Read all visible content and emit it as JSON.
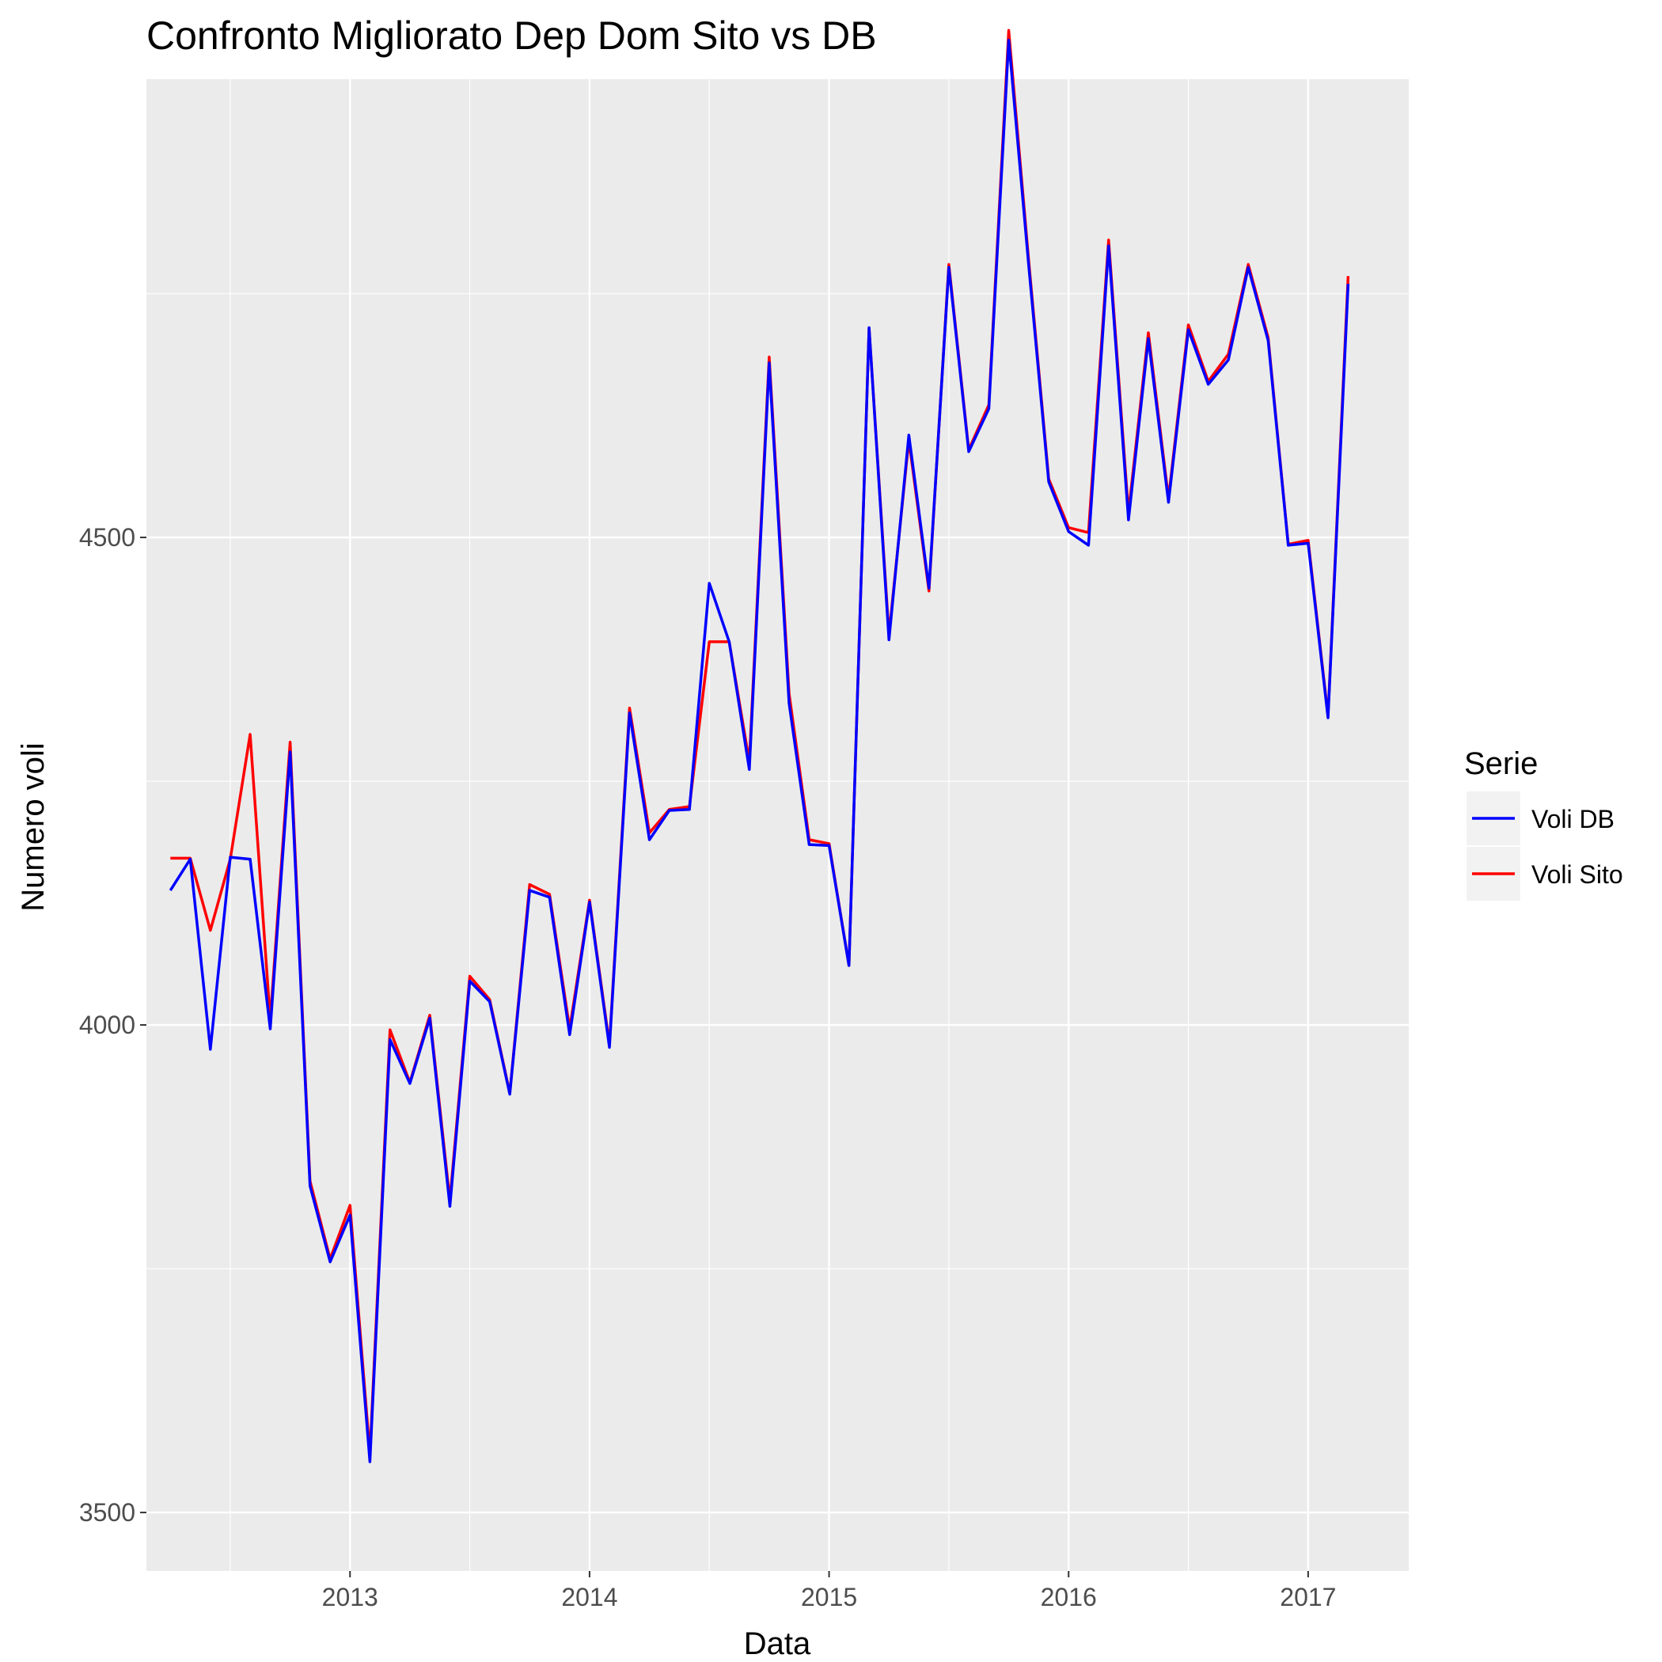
{
  "chart_data": {
    "type": "line",
    "title": "Confronto Migliorato Dep Dom Sito vs DB",
    "xlabel": "Data",
    "ylabel": "Numero voli",
    "xlim": [
      2012.15,
      2017.42
    ],
    "ylim": [
      3440,
      4970
    ],
    "x_ticks": [
      2013,
      2014,
      2015,
      2016,
      2017
    ],
    "x_tick_labels": [
      "2013",
      "2014",
      "2015",
      "2016",
      "2017"
    ],
    "y_ticks": [
      3500,
      4000,
      4500
    ],
    "y_tick_labels": [
      "3500",
      "4000",
      "4500"
    ],
    "grid": true,
    "legend": {
      "title": "Serie",
      "position": "right"
    },
    "x_dates": [
      "2012-04",
      "2012-05",
      "2012-06",
      "2012-07",
      "2012-08",
      "2012-09",
      "2012-10",
      "2012-11",
      "2012-12",
      "2013-01",
      "2013-02",
      "2013-03",
      "2013-04",
      "2013-05",
      "2013-06",
      "2013-07",
      "2013-08",
      "2013-09",
      "2013-10",
      "2013-11",
      "2013-12",
      "2014-01",
      "2014-02",
      "2014-03",
      "2014-04",
      "2014-05",
      "2014-06",
      "2014-07",
      "2014-08",
      "2014-09",
      "2014-10",
      "2014-11",
      "2014-12",
      "2015-01",
      "2015-02",
      "2015-03",
      "2015-04",
      "2015-05",
      "2015-06",
      "2015-07",
      "2015-08",
      "2015-09",
      "2015-10",
      "2015-11",
      "2015-12",
      "2016-01",
      "2016-02",
      "2016-03",
      "2016-04",
      "2016-05",
      "2016-06",
      "2016-07",
      "2016-08",
      "2016-09",
      "2016-10",
      "2016-11",
      "2016-12",
      "2017-01",
      "2017-02",
      "2017-03"
    ],
    "x": [
      2012.25,
      2012.333,
      2012.417,
      2012.5,
      2012.583,
      2012.667,
      2012.75,
      2012.833,
      2012.917,
      2013.0,
      2013.083,
      2013.167,
      2013.25,
      2013.333,
      2013.417,
      2013.5,
      2013.583,
      2013.667,
      2013.75,
      2013.833,
      2013.917,
      2014.0,
      2014.083,
      2014.167,
      2014.25,
      2014.333,
      2014.417,
      2014.5,
      2014.583,
      2014.667,
      2014.75,
      2014.833,
      2014.917,
      2015.0,
      2015.083,
      2015.167,
      2015.25,
      2015.333,
      2015.417,
      2015.5,
      2015.583,
      2015.667,
      2015.75,
      2015.833,
      2015.917,
      2016.0,
      2016.083,
      2016.167,
      2016.25,
      2016.333,
      2016.417,
      2016.5,
      2016.583,
      2016.667,
      2016.75,
      2016.833,
      2016.917,
      2017.0,
      2017.083,
      2017.167
    ],
    "series": [
      {
        "name": "Voli DB",
        "color": "#0000ff",
        "values": [
          4138,
          4170,
          3975,
          4172,
          4170,
          3996,
          4280,
          3835,
          3757,
          3805,
          3552,
          3985,
          3940,
          4007,
          3814,
          4045,
          4024,
          3929,
          4138,
          4131,
          3990,
          4126,
          3977,
          4320,
          4190,
          4220,
          4221,
          4453,
          4393,
          4262,
          4679,
          4330,
          4185,
          4184,
          4061,
          4715,
          4395,
          4605,
          4448,
          4777,
          4588,
          4632,
          5010,
          4780,
          4557,
          4506,
          4492,
          4799,
          4518,
          4704,
          4536,
          4713,
          4657,
          4682,
          4777,
          4702,
          4492,
          4494,
          4315,
          4760
        ],
        "draw_order": 2
      },
      {
        "name": "Voli Sito",
        "color": "#ff0000",
        "values": [
          4171,
          4171,
          4097,
          4170,
          4298,
          4005,
          4290,
          3840,
          3760,
          3815,
          3560,
          3995,
          3941,
          4010,
          3820,
          4050,
          4026,
          3930,
          4144,
          4134,
          3996,
          4128,
          3980,
          4325,
          4197,
          4221,
          4224,
          4393,
          4393,
          4270,
          4685,
          4340,
          4190,
          4186,
          4061,
          4715,
          4400,
          4600,
          4445,
          4780,
          4590,
          4636,
          5020,
          4785,
          4560,
          4510,
          4505,
          4805,
          4525,
          4710,
          4540,
          4718,
          4660,
          4688,
          4780,
          4705,
          4493,
          4497,
          4317,
          4768
        ],
        "draw_order": 1
      }
    ]
  }
}
